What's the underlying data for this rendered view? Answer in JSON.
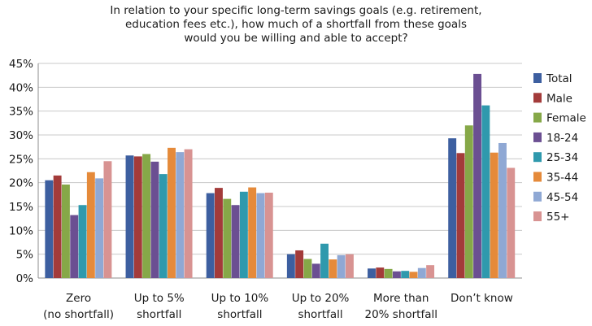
{
  "chart_data": {
    "type": "bar",
    "title": [
      "In relation to your specific long-term savings goals (e.g. retirement,",
      "education fees etc.), how much of a shortfall from these goals",
      "would you be willing and able to accept?"
    ],
    "categories": [
      [
        "Zero",
        "(no shortfall)"
      ],
      [
        "Up to 5%",
        "shortfall"
      ],
      [
        "Up to 10%",
        "shortfall"
      ],
      [
        "Up to 20%",
        "shortfall"
      ],
      [
        "More than",
        "20% shortfall"
      ],
      [
        "Don’t know"
      ]
    ],
    "series": [
      {
        "name": "Total",
        "color": "#3d5fa0",
        "values": [
          20.5,
          25.7,
          17.8,
          5.0,
          2.0,
          29.3
        ]
      },
      {
        "name": "Male",
        "color": "#a33b3a",
        "values": [
          21.5,
          25.5,
          18.9,
          5.8,
          2.2,
          26.2
        ]
      },
      {
        "name": "Female",
        "color": "#86a848",
        "values": [
          19.6,
          26.0,
          16.6,
          4.0,
          1.9,
          32.0
        ]
      },
      {
        "name": "18-24",
        "color": "#6b4f92",
        "values": [
          13.2,
          24.4,
          15.3,
          3.0,
          1.4,
          42.8
        ]
      },
      {
        "name": "25-34",
        "color": "#2f99ad",
        "values": [
          15.3,
          21.8,
          18.1,
          7.2,
          1.5,
          36.2
        ]
      },
      {
        "name": "35-44",
        "color": "#e58a3a",
        "values": [
          22.2,
          27.3,
          19.0,
          3.9,
          1.3,
          26.3
        ]
      },
      {
        "name": "45-54",
        "color": "#8fa8d4",
        "values": [
          20.9,
          26.4,
          17.8,
          4.8,
          2.1,
          28.3
        ]
      },
      {
        "name": "55+",
        "color": "#d89392",
        "values": [
          24.5,
          27.0,
          17.9,
          5.0,
          2.7,
          23.1
        ]
      }
    ],
    "yticks": [
      "0%",
      "5%",
      "10%",
      "15%",
      "20%",
      "25%",
      "30%",
      "35%",
      "40%",
      "45%"
    ],
    "ylim": [
      0,
      45
    ],
    "grid": true,
    "legend": "right"
  }
}
